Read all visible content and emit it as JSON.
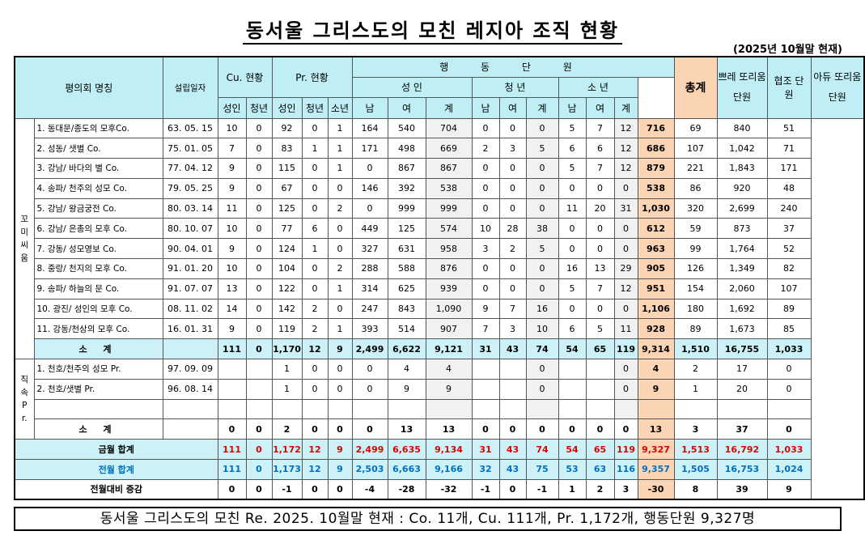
{
  "title": "동서울 그리스도의 모친 레지아 조직 현황",
  "subtitle": "(2025년 10월말 현재)",
  "headers": {
    "name": "평의회 명칭",
    "date": "설립일자",
    "cu": "Cu. 현황",
    "pr": "Pr. 현황",
    "active": "행 동 단 원",
    "adult": "성 인",
    "youth": "청 년",
    "junior": "소 년",
    "total": "총계",
    "ppeu": "쁘레 또리움 단원",
    "aux": "협조 단원",
    "adu": "아듀 또리움 단원",
    "sub": [
      "성인",
      "청년",
      "성인",
      "청년",
      "소년",
      "남",
      "여",
      "계",
      "남",
      "여",
      "계",
      "남",
      "여",
      "계"
    ]
  },
  "group1_label": "꼬미씨움",
  "group2_label": "직속 Pr.",
  "rows1": [
    {
      "name": "1. 동대문/종도의 모후Co.",
      "date": "63. 05. 15",
      "v": [
        "10",
        "0",
        "92",
        "0",
        "1",
        "164",
        "540",
        "704",
        "0",
        "0",
        "0",
        "5",
        "7",
        "12",
        "716",
        "69",
        "840",
        "51"
      ]
    },
    {
      "name": "2. 성동/ 샛별 Co.",
      "date": "75. 01. 05",
      "v": [
        "7",
        "0",
        "83",
        "1",
        "1",
        "171",
        "498",
        "669",
        "2",
        "3",
        "5",
        "6",
        "6",
        "12",
        "686",
        "107",
        "1,042",
        "71"
      ]
    },
    {
      "name": "3. 강남/ 바다의 별 Co.",
      "date": "77. 04. 12",
      "v": [
        "9",
        "0",
        "115",
        "0",
        "1",
        "0",
        "867",
        "867",
        "0",
        "0",
        "0",
        "5",
        "7",
        "12",
        "879",
        "221",
        "1,843",
        "171"
      ]
    },
    {
      "name": "4. 송파/ 천주의 성모 Co.",
      "date": "79. 05. 25",
      "v": [
        "9",
        "0",
        "67",
        "0",
        "0",
        "146",
        "392",
        "538",
        "0",
        "0",
        "0",
        "0",
        "0",
        "0",
        "538",
        "86",
        "920",
        "48"
      ]
    },
    {
      "name": "5. 강남/ 왕금궁전 Co.",
      "date": "80. 03. 14",
      "v": [
        "11",
        "0",
        "125",
        "0",
        "2",
        "0",
        "999",
        "999",
        "0",
        "0",
        "0",
        "11",
        "20",
        "31",
        "1,030",
        "320",
        "2,699",
        "240"
      ]
    },
    {
      "name": "6. 강남/ 은총의 모후 Co.",
      "date": "80. 10. 07",
      "v": [
        "10",
        "0",
        "77",
        "6",
        "0",
        "449",
        "125",
        "574",
        "10",
        "28",
        "38",
        "0",
        "0",
        "0",
        "612",
        "59",
        "873",
        "37"
      ]
    },
    {
      "name": "7. 강동/ 성모영보 Co.",
      "date": "90. 04. 01",
      "v": [
        "9",
        "0",
        "124",
        "1",
        "0",
        "327",
        "631",
        "958",
        "3",
        "2",
        "5",
        "0",
        "0",
        "0",
        "963",
        "99",
        "1,764",
        "52"
      ]
    },
    {
      "name": "8. 중랑/ 천지의 모후 Co.",
      "date": "91. 01. 20",
      "v": [
        "10",
        "0",
        "104",
        "0",
        "2",
        "288",
        "588",
        "876",
        "0",
        "0",
        "0",
        "16",
        "13",
        "29",
        "905",
        "126",
        "1,349",
        "82"
      ]
    },
    {
      "name": "9. 송파/ 하늘의 문 Co.",
      "date": "91. 07. 07",
      "v": [
        "13",
        "0",
        "122",
        "0",
        "1",
        "314",
        "625",
        "939",
        "0",
        "0",
        "0",
        "5",
        "7",
        "12",
        "951",
        "154",
        "2,060",
        "107"
      ]
    },
    {
      "name": "10. 광진/ 성인의 모후 Co.",
      "date": "08. 11. 02",
      "v": [
        "14",
        "0",
        "142",
        "2",
        "0",
        "247",
        "843",
        "1,090",
        "9",
        "7",
        "16",
        "0",
        "0",
        "0",
        "1,106",
        "180",
        "1,692",
        "89"
      ]
    },
    {
      "name": "11. 강동/천상의 모후 Co.",
      "date": "16. 01. 31",
      "v": [
        "9",
        "0",
        "119",
        "2",
        "1",
        "393",
        "514",
        "907",
        "7",
        "3",
        "10",
        "6",
        "5",
        "11",
        "928",
        "89",
        "1,673",
        "85"
      ]
    }
  ],
  "subtotal1": {
    "label": "소 계",
    "v": [
      "111",
      "0",
      "1,170",
      "12",
      "9",
      "2,499",
      "6,622",
      "9,121",
      "31",
      "43",
      "74",
      "54",
      "65",
      "119",
      "9,314",
      "1,510",
      "16,755",
      "1,033"
    ]
  },
  "rows2": [
    {
      "name": "1. 천호/천주의 성모 Pr.",
      "date": "97. 09. 09",
      "v": [
        "",
        "",
        "1",
        "0",
        "0",
        "0",
        "4",
        "4",
        "",
        "",
        "0",
        "",
        "",
        "0",
        "4",
        "2",
        "17",
        "0"
      ]
    },
    {
      "name": "2. 천호/샛별 Pr.",
      "date": "96. 08. 14",
      "v": [
        "",
        "",
        "1",
        "0",
        "0",
        "0",
        "9",
        "9",
        "",
        "",
        "0",
        "",
        "",
        "0",
        "9",
        "1",
        "20",
        "0"
      ]
    },
    {
      "name": "",
      "date": "",
      "v": [
        "",
        "",
        "",
        "",
        "",
        "",
        "",
        "",
        "",
        "",
        "",
        "",
        "",
        "",
        "",
        "",
        "",
        ""
      ]
    }
  ],
  "subtotal2": {
    "label": "소 계",
    "v": [
      "0",
      "0",
      "2",
      "0",
      "0",
      "0",
      "13",
      "13",
      "0",
      "0",
      "0",
      "0",
      "0",
      "0",
      "13",
      "3",
      "37",
      "0"
    ]
  },
  "current": {
    "label": "금월 합계",
    "v": [
      "111",
      "0",
      "1,172",
      "12",
      "9",
      "2,499",
      "6,635",
      "9,134",
      "31",
      "43",
      "74",
      "54",
      "65",
      "119",
      "9,327",
      "1,513",
      "16,792",
      "1,033"
    ]
  },
  "previous": {
    "label": "전월 합계",
    "v": [
      "111",
      "0",
      "1,173",
      "12",
      "9",
      "2,503",
      "6,663",
      "9,166",
      "32",
      "43",
      "75",
      "53",
      "63",
      "116",
      "9,357",
      "1,505",
      "16,753",
      "1,024"
    ]
  },
  "diff": {
    "label": "전월대비 증감",
    "v": [
      "0",
      "0",
      "-1",
      "0",
      "0",
      "-4",
      "-28",
      "-32",
      "-1",
      "0",
      "-1",
      "1",
      "2",
      "3",
      "-30",
      "8",
      "39",
      "9"
    ]
  },
  "footer": "동서울 그리스도의 모친 Re. 2025. 10월말 현재 : Co. 11개, Cu. 111개, Pr. 1,172개, 행동단원 9,327명",
  "colors": {
    "header_bg": "#bfeff4",
    "total_bg": "#fbd4b4",
    "current_text": "#e00000",
    "previous_text": "#0070c0",
    "gray_col": "#f1f1f1"
  }
}
